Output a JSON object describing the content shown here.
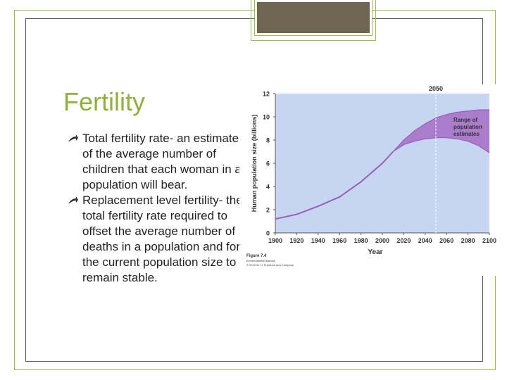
{
  "slide": {
    "title": "Fertility",
    "bullets": [
      "Total fertility rate- an estimate of the average number of children that each woman in a population will bear.",
      "Replacement level fertility- the total fertility rate required to offset the average number of deaths in a population and for the current population size to remain stable."
    ],
    "accent_color": "#8fb13c",
    "tab_color": "#6e6653"
  },
  "chart_data": {
    "type": "line",
    "title": "",
    "xlabel": "Year",
    "ylabel": "Human population size (billions)",
    "xlim": [
      1900,
      2100
    ],
    "ylim": [
      0,
      12
    ],
    "x_ticks": [
      1900,
      1920,
      1940,
      1960,
      1980,
      2000,
      2020,
      2040,
      2060,
      2080,
      2100
    ],
    "y_ticks": [
      0,
      2,
      4,
      6,
      8,
      10,
      12
    ],
    "marker": {
      "x": 2050,
      "label": "2050"
    },
    "band_label": "Range of population estimates",
    "series": [
      {
        "x": [
          1900,
          1920,
          1940,
          1960,
          1980,
          2000,
          2010
        ],
        "values": [
          1.2,
          1.6,
          2.3,
          3.1,
          4.4,
          6.0,
          7.0
        ]
      }
    ],
    "band": {
      "x": [
        2010,
        2020,
        2030,
        2040,
        2050,
        2060,
        2070,
        2080,
        2090,
        2100
      ],
      "upper": [
        7.0,
        8.0,
        8.8,
        9.4,
        9.9,
        10.2,
        10.4,
        10.5,
        10.6,
        10.6
      ],
      "lower": [
        7.0,
        7.6,
        7.9,
        8.1,
        8.2,
        8.2,
        8.1,
        7.9,
        7.5,
        6.9
      ]
    },
    "plot_bg": "#c6d6f2",
    "band_color": "#a56cc4",
    "line_color": "#9b5db8",
    "caption": {
      "figure": "Figure 7.4",
      "line1": "Environmental Science",
      "line2": "© 2012 W. H. Freeman and Company"
    }
  }
}
